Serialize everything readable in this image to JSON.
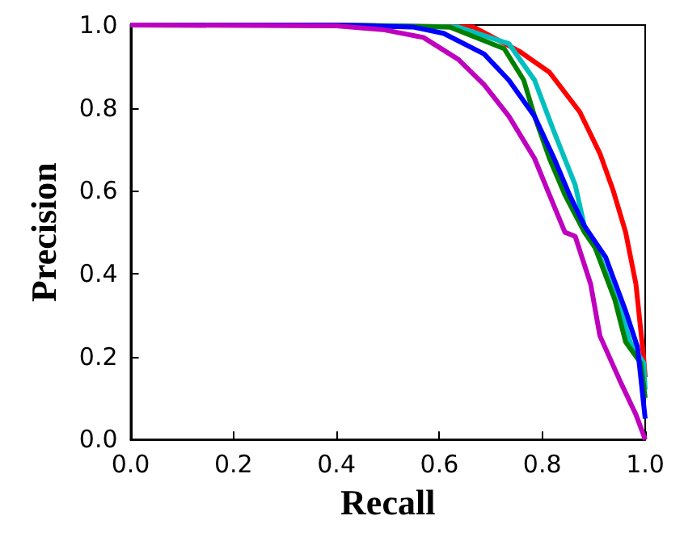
{
  "chart_data": {
    "type": "line",
    "xlabel": "Recall",
    "ylabel": "Precision",
    "xlim": [
      0,
      1
    ],
    "ylim": [
      0,
      1
    ],
    "xticks": [
      {
        "value": 0,
        "label": "0.0"
      },
      {
        "value": 0.2,
        "label": "0.2"
      },
      {
        "value": 0.4,
        "label": "0.4"
      },
      {
        "value": 0.6,
        "label": "0.6"
      },
      {
        "value": 0.8,
        "label": "0.8"
      },
      {
        "value": 1,
        "label": "1.0"
      }
    ],
    "yticks": [
      {
        "value": 0,
        "label": "0.0"
      },
      {
        "value": 0.2,
        "label": "0.2"
      },
      {
        "value": 0.4,
        "label": "0.4"
      },
      {
        "value": 0.6,
        "label": "0.6"
      },
      {
        "value": 0.8,
        "label": "0.8"
      },
      {
        "value": 1,
        "label": "1.0"
      }
    ],
    "grid": false,
    "marker": "none",
    "line_style": "solid",
    "series": [
      {
        "color": "#ff0000",
        "x": [
          0,
          0.4,
          0.667,
          0.755,
          0.814,
          0.873,
          0.912,
          0.938,
          0.962,
          0.982,
          0.997,
          1.0
        ],
        "values": [
          1,
          1,
          0.995,
          0.937,
          0.886,
          0.79,
          0.69,
          0.6,
          0.5,
          0.375,
          0.197,
          0.15
        ]
      },
      {
        "color": "#00bfbf",
        "x": [
          0,
          0.4,
          0.637,
          0.735,
          0.785,
          0.823,
          0.864,
          0.882,
          0.912,
          0.953,
          0.971,
          0.997,
          1.0
        ],
        "values": [
          1,
          1,
          0.995,
          0.955,
          0.867,
          0.742,
          0.614,
          0.514,
          0.44,
          0.31,
          0.235,
          0.185,
          0.12
        ]
      },
      {
        "color": "#008000",
        "x": [
          0,
          0.4,
          0.62,
          0.726,
          0.764,
          0.785,
          0.814,
          0.844,
          0.882,
          0.903,
          0.941,
          0.962,
          0.991,
          1.0
        ],
        "values": [
          1,
          1,
          0.995,
          0.943,
          0.867,
          0.78,
          0.678,
          0.59,
          0.5,
          0.462,
          0.337,
          0.235,
          0.185,
          0.1
        ]
      },
      {
        "color": "#0000ff",
        "x": [
          0,
          0.4,
          0.55,
          0.608,
          0.687,
          0.735,
          0.785,
          0.823,
          0.853,
          0.882,
          0.923,
          0.962,
          0.985,
          1.0
        ],
        "values": [
          1,
          1,
          0.995,
          0.98,
          0.93,
          0.867,
          0.78,
          0.678,
          0.59,
          0.515,
          0.44,
          0.31,
          0.223,
          0.05
        ]
      },
      {
        "color": "#bf00bf",
        "x": [
          0,
          0.4,
          0.49,
          0.569,
          0.637,
          0.687,
          0.735,
          0.785,
          0.814,
          0.844,
          0.864,
          0.894,
          0.912,
          0.953,
          0.982,
          1.0
        ],
        "values": [
          1,
          0.998,
          0.989,
          0.97,
          0.917,
          0.856,
          0.78,
          0.678,
          0.59,
          0.5,
          0.49,
          0.375,
          0.25,
          0.136,
          0.06,
          0
        ]
      }
    ]
  }
}
